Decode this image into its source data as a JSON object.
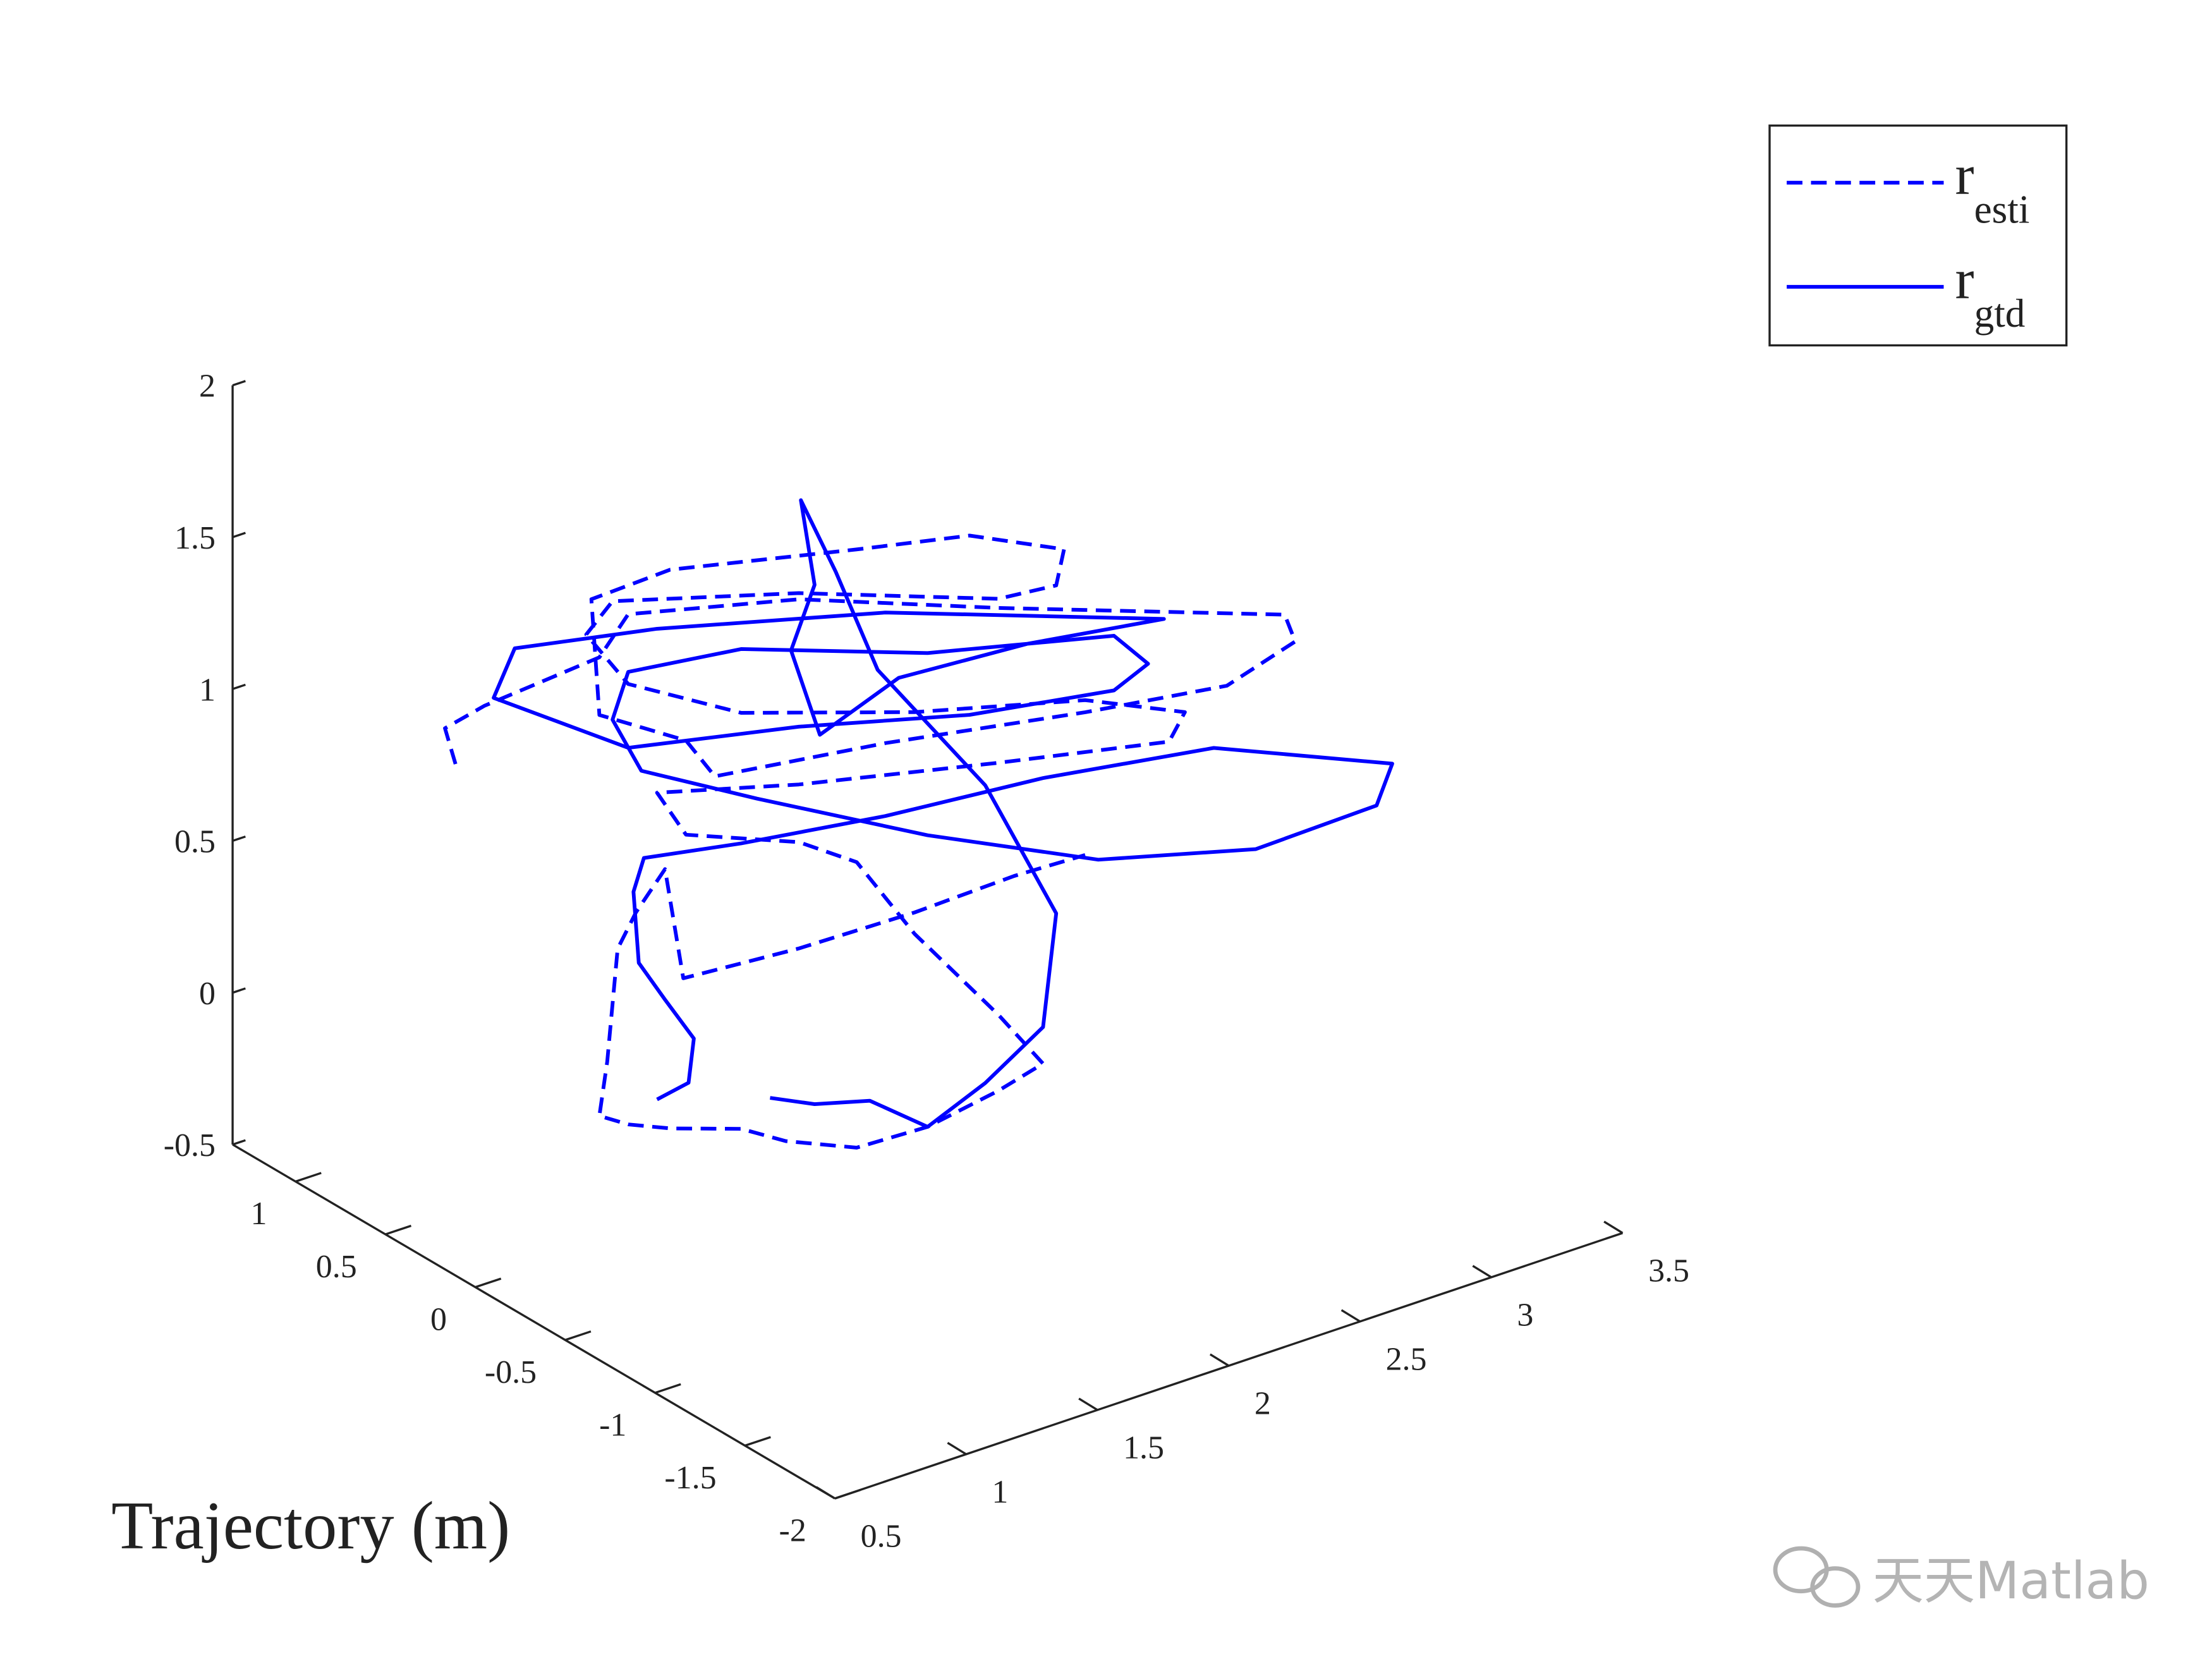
{
  "chart_data": {
    "type": "line3d",
    "annotation": "Trajectory (m)",
    "xlim": [
      0.5,
      3.5
    ],
    "xticks": [
      0.5,
      1,
      1.5,
      2,
      2.5,
      3,
      3.5
    ],
    "ylim": [
      -2,
      1.35
    ],
    "yticks": [
      -2,
      -1.5,
      -1,
      -0.5,
      0,
      0.5,
      1
    ],
    "zlim": [
      -0.5,
      2
    ],
    "zticks": [
      -0.5,
      0,
      0.5,
      1,
      1.5,
      2
    ],
    "legend": "upper right",
    "series": [
      {
        "name": "r_{esti}",
        "color": "#0000ff",
        "linestyle": "dashed",
        "x": [
          0.63,
          0.59,
          0.74,
          0.63,
          0.74,
          1.39,
          2.15,
          3.24,
          3.28,
          3.02,
          2.48,
          1.72,
          1.07,
          0.96,
          0.63,
          0.6,
          0.9,
          1.61,
          2.04,
          2.4,
          2.37,
          2.15,
          1.39,
          0.68,
          0.58,
          0.74,
          1.17,
          1.83,
          2.48,
          2.86,
          2.8,
          2.15,
          1.39,
          0.85,
          0.96,
          1.39,
          1.61,
          1.83,
          2.15,
          2.32,
          2.15,
          1.88,
          1.61,
          1.34,
          1.17,
          0.9,
          0.74,
          0.63,
          0.66,
          0.7,
          0.77,
          0.88,
          0.95,
          1.39,
          1.83,
          2.21,
          2.48
        ],
        "y": [
          0.3,
          0.3,
          0.3,
          -0.5,
          -0.5,
          -0.5,
          -0.5,
          -0.5,
          -0.5,
          -0.5,
          -0.5,
          -0.5,
          -0.5,
          -0.5,
          -0.5,
          -0.5,
          -0.5,
          -0.5,
          -0.5,
          -0.5,
          -0.5,
          -0.5,
          -0.5,
          -0.5,
          -0.5,
          -0.5,
          -0.5,
          -0.5,
          -0.5,
          -0.5,
          -0.5,
          -0.5,
          -0.5,
          -0.5,
          -0.5,
          -0.5,
          -0.5,
          -0.5,
          -0.5,
          -0.5,
          -0.5,
          -0.5,
          -0.5,
          -0.5,
          -0.5,
          -0.5,
          -0.5,
          -0.5,
          -0.5,
          -0.5,
          -0.5,
          -0.5,
          -0.5,
          -0.5,
          -0.5,
          -0.5,
          -0.5
        ],
        "z": [
          1.08,
          1.21,
          1.24,
          1.71,
          1.82,
          1.68,
          1.43,
          1.09,
          0.99,
          0.92,
          0.99,
          1.11,
          1.19,
          1.34,
          1.52,
          1.91,
          1.92,
          1.78,
          1.7,
          1.55,
          1.44,
          1.46,
          1.7,
          1.88,
          1.8,
          1.59,
          1.37,
          1.18,
          1.03,
          0.88,
          0.8,
          0.92,
          1.07,
          1.2,
          1.03,
          0.88,
          0.75,
          0.45,
          0.09,
          -0.12,
          -0.16,
          -0.2,
          -0.19,
          -0.09,
          0.0,
          0.08,
          0.14,
          0.2,
          0.37,
          0.73,
          0.83,
          0.94,
          0.56,
          0.53,
          0.52,
          0.53,
          0.52
        ]
      },
      {
        "name": "r_{gtd}",
        "color": "#0000ff",
        "linestyle": "solid",
        "x": [
          0.85,
          0.97,
          0.99,
          0.88,
          0.78,
          0.76,
          0.8,
          1.17,
          1.72,
          2.32,
          2.97,
          3.65,
          3.59,
          3.13,
          2.53,
          1.88,
          1.23,
          0.79,
          0.68,
          0.74,
          1.17,
          1.88,
          2.59,
          2.72,
          2.59,
          2.04,
          1.39,
          0.74,
          0.57,
          0.65,
          0.85,
          1.72,
          2.78,
          2.26,
          1.77,
          1.47,
          1.36,
          1.45,
          1.74,
          1.53,
          1.69,
          2.1,
          2.37,
          2.32,
          2.1,
          1.88,
          1.66,
          1.45,
          1.28
        ],
        "y": [
          -0.5,
          -0.5,
          -0.5,
          -0.5,
          -0.5,
          -0.5,
          -0.5,
          -0.5,
          -0.5,
          -0.5,
          -0.5,
          -0.5,
          -0.5,
          -0.5,
          -0.5,
          -0.5,
          -0.5,
          -0.5,
          -0.5,
          -0.5,
          -0.5,
          -0.5,
          -0.5,
          -0.5,
          -0.5,
          -0.5,
          -0.5,
          -0.5,
          0,
          0,
          -0.5,
          -0.5,
          -0.5,
          -0.5,
          -0.5,
          -0.5,
          -0.5,
          -0.5,
          0,
          -0.5,
          -0.5,
          -0.5,
          -0.5,
          -0.5,
          -0.5,
          -0.5,
          -0.5,
          -0.5,
          -0.5
        ],
        "z": [
          0.19,
          0.21,
          0.35,
          0.51,
          0.66,
          0.9,
          1.0,
          0.94,
          0.87,
          0.82,
          0.73,
          0.48,
          0.36,
          0.35,
          0.49,
          0.76,
          1.07,
          1.29,
          1.49,
          1.63,
          1.58,
          1.36,
          1.21,
          1.08,
          1.03,
          1.11,
          1.26,
          1.38,
          1.42,
          1.56,
          1.74,
          1.54,
          1.21,
          1.28,
          1.31,
          1.21,
          1.52,
          1.71,
          1.73,
          1.73,
          1.36,
          0.86,
          0.36,
          0,
          -0.12,
          -0.2,
          -0.05,
          0,
          0.07
        ]
      }
    ]
  },
  "watermark": "天天Matlab"
}
